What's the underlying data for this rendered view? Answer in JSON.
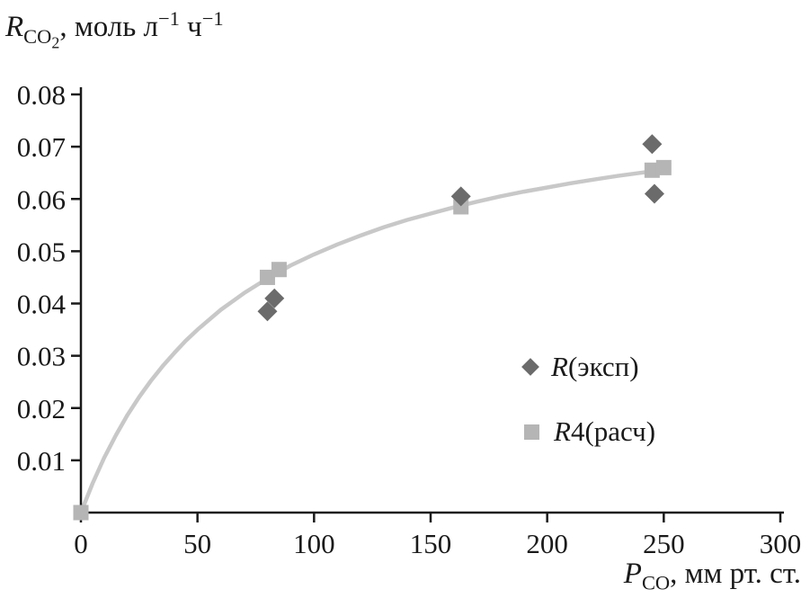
{
  "chart_data": {
    "type": "scatter",
    "ylabel": {
      "var": "R",
      "var_sub": "CO",
      "var_subsub": "2",
      "unit_1": ", моль л",
      "unit_sup_1": "−1",
      "unit_2": " ч",
      "unit_sup_2": "−1"
    },
    "xlabel": {
      "var": "P",
      "var_sub": "CO",
      "unit": ", мм рт. ст."
    },
    "xlim": [
      0,
      300
    ],
    "ylim": [
      0,
      0.08
    ],
    "x_ticks": [
      0,
      50,
      100,
      150,
      200,
      250,
      300
    ],
    "y_ticks": [
      0.01,
      0.02,
      0.03,
      0.04,
      0.05,
      0.06,
      0.07,
      0.08
    ],
    "grid": false,
    "legend_position": "inside-right",
    "axis_color": "#1a1a1a",
    "series": [
      {
        "name": "R(эксп)",
        "marker": "diamond",
        "color": "#6b6b6b",
        "points": [
          [
            80,
            0.0385
          ],
          [
            83,
            0.041
          ],
          [
            163,
            0.0605
          ],
          [
            245,
            0.0705
          ],
          [
            246,
            0.061
          ]
        ]
      },
      {
        "name": "R4(расч)",
        "marker": "square",
        "color": "#b5b5b5",
        "points": [
          [
            0,
            0.0
          ],
          [
            80,
            0.045
          ],
          [
            85,
            0.0465
          ],
          [
            163,
            0.0585
          ],
          [
            245,
            0.0655
          ],
          [
            250,
            0.066
          ]
        ]
      }
    ],
    "fit_curve": {
      "color": "#c8c8c8",
      "width": 4.5,
      "points": [
        [
          0,
          0.0
        ],
        [
          5,
          0.0056
        ],
        [
          10,
          0.0105
        ],
        [
          15,
          0.0148
        ],
        [
          20,
          0.0187
        ],
        [
          25,
          0.0221
        ],
        [
          30,
          0.0252
        ],
        [
          35,
          0.028
        ],
        [
          40,
          0.0305
        ],
        [
          45,
          0.0329
        ],
        [
          50,
          0.035
        ],
        [
          60,
          0.0388
        ],
        [
          70,
          0.042
        ],
        [
          80,
          0.0448
        ],
        [
          90,
          0.0473
        ],
        [
          100,
          0.0494
        ],
        [
          110,
          0.0513
        ],
        [
          120,
          0.053
        ],
        [
          130,
          0.0546
        ],
        [
          140,
          0.056
        ],
        [
          150,
          0.0572
        ],
        [
          160,
          0.0584
        ],
        [
          170,
          0.0595
        ],
        [
          180,
          0.0605
        ],
        [
          190,
          0.0614
        ],
        [
          200,
          0.0622
        ],
        [
          210,
          0.063
        ],
        [
          220,
          0.0637
        ],
        [
          230,
          0.0644
        ],
        [
          240,
          0.065
        ],
        [
          252,
          0.0657
        ]
      ]
    },
    "legend": [
      {
        "var": "R",
        "rest": "(эксп)"
      },
      {
        "var": "R",
        "rest": "4(расч)"
      }
    ]
  }
}
